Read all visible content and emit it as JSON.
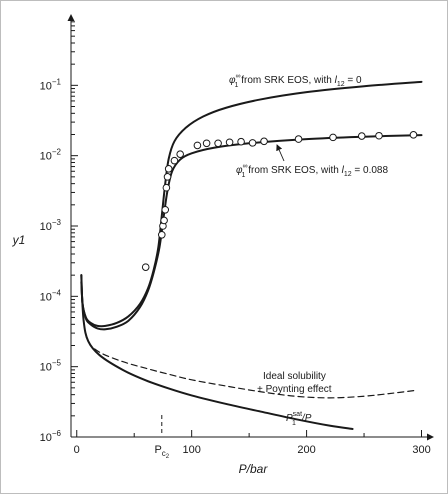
{
  "chart_data": {
    "type": "line",
    "xlabel": "P/bar",
    "ylabel": "y1",
    "x_scale": "linear",
    "y_scale": "log",
    "xlim": [
      -5,
      310
    ],
    "ylim": [
      1e-06,
      1
    ],
    "x_ticks": [
      {
        "value": 0,
        "label": "0"
      },
      {
        "value": 100,
        "label": "100"
      },
      {
        "value": 200,
        "label": "200"
      },
      {
        "value": 300,
        "label": "300"
      }
    ],
    "y_ticks": [
      {
        "value": 1e-06,
        "base": "10",
        "exp": "−6"
      },
      {
        "value": 1e-05,
        "base": "10",
        "exp": "−5"
      },
      {
        "value": 0.0001,
        "base": "10",
        "exp": "−4"
      },
      {
        "value": 0.001,
        "base": "10",
        "exp": "−3"
      },
      {
        "value": 0.01,
        "base": "10",
        "exp": "−2"
      },
      {
        "value": 0.1,
        "base": "10",
        "exp": "−1"
      }
    ],
    "pc2": {
      "value": 74,
      "label": "P",
      "sub": "c",
      "subsub": "2"
    },
    "series": [
      {
        "key": "srk_l12_0",
        "style": "solid",
        "points": [
          [
            4,
            0.0002
          ],
          [
            5,
            8e-05
          ],
          [
            8,
            5e-05
          ],
          [
            12,
            4.2e-05
          ],
          [
            18,
            3.8e-05
          ],
          [
            25,
            3.8e-05
          ],
          [
            35,
            4.2e-05
          ],
          [
            45,
            5.2e-05
          ],
          [
            55,
            7.8e-05
          ],
          [
            62,
            0.00013
          ],
          [
            67,
            0.00024
          ],
          [
            71,
            0.0005
          ],
          [
            74,
            0.0014
          ],
          [
            77,
            0.004
          ],
          [
            80,
            0.009
          ],
          [
            85,
            0.016
          ],
          [
            95,
            0.025
          ],
          [
            110,
            0.036
          ],
          [
            130,
            0.048
          ],
          [
            160,
            0.063
          ],
          [
            200,
            0.08
          ],
          [
            250,
            0.097
          ],
          [
            300,
            0.112
          ]
        ]
      },
      {
        "key": "srk_l12_0088",
        "style": "solid",
        "points": [
          [
            4,
            0.0002
          ],
          [
            5,
            8e-05
          ],
          [
            8,
            4.8e-05
          ],
          [
            12,
            4e-05
          ],
          [
            18,
            3.5e-05
          ],
          [
            25,
            3.4e-05
          ],
          [
            35,
            3.7e-05
          ],
          [
            45,
            4.5e-05
          ],
          [
            55,
            7e-05
          ],
          [
            62,
            0.00012
          ],
          [
            67,
            0.00022
          ],
          [
            72,
            0.0005
          ],
          [
            76,
            0.0015
          ],
          [
            79,
            0.0032
          ],
          [
            83,
            0.006
          ],
          [
            90,
            0.0088
          ],
          [
            100,
            0.0108
          ],
          [
            120,
            0.013
          ],
          [
            150,
            0.015
          ],
          [
            200,
            0.0172
          ],
          [
            250,
            0.0186
          ],
          [
            300,
            0.0196
          ]
        ]
      },
      {
        "key": "ideal_poynting",
        "style": "dashed",
        "points": [
          [
            4,
            0.00016
          ],
          [
            6,
            4.5e-05
          ],
          [
            10,
            2.3e-05
          ],
          [
            20,
            1.6e-05
          ],
          [
            40,
            1.18e-05
          ],
          [
            60,
            9.5e-06
          ],
          [
            80,
            7.8e-06
          ],
          [
            100,
            6.5e-06
          ],
          [
            130,
            5.3e-06
          ],
          [
            160,
            4.4e-06
          ],
          [
            190,
            3.8e-06
          ],
          [
            220,
            3.6e-06
          ],
          [
            250,
            3.8e-06
          ],
          [
            275,
            4.2e-06
          ],
          [
            295,
            4.6e-06
          ]
        ]
      },
      {
        "key": "psat_over_p",
        "style": "solid",
        "points": [
          [
            4,
            0.00016
          ],
          [
            6,
            4.5e-05
          ],
          [
            10,
            2.3e-05
          ],
          [
            20,
            1.45e-05
          ],
          [
            40,
            9e-06
          ],
          [
            60,
            6.4e-06
          ],
          [
            80,
            4.9e-06
          ],
          [
            100,
            3.9e-06
          ],
          [
            130,
            2.95e-06
          ],
          [
            160,
            2.3e-06
          ],
          [
            190,
            1.8e-06
          ],
          [
            220,
            1.45e-06
          ],
          [
            240,
            1.3e-06
          ]
        ]
      }
    ],
    "experimental": {
      "marker": "open-circle",
      "points": [
        [
          60,
          0.00026
        ],
        [
          74,
          0.00075
        ],
        [
          75,
          0.001
        ],
        [
          76,
          0.0012
        ],
        [
          77,
          0.0017
        ],
        [
          78,
          0.0035
        ],
        [
          79,
          0.005
        ],
        [
          80,
          0.0065
        ],
        [
          85,
          0.0085
        ],
        [
          90,
          0.0105
        ],
        [
          105,
          0.014
        ],
        [
          113,
          0.015
        ],
        [
          123,
          0.015
        ],
        [
          133,
          0.0155
        ],
        [
          143,
          0.0158
        ],
        [
          153,
          0.0152
        ],
        [
          163,
          0.016
        ],
        [
          193,
          0.0172
        ],
        [
          223,
          0.0182
        ],
        [
          248,
          0.019
        ],
        [
          263,
          0.0192
        ],
        [
          293,
          0.0198
        ]
      ]
    },
    "annotations": {
      "srk_l12_0": {
        "phi": "φ",
        "phi_sup": "∞",
        "phi_sub": "1",
        "text": " from SRK EOS, with ",
        "l": "l",
        "l_sub": "12",
        "value": " = 0"
      },
      "srk_l12_0088": {
        "phi": "φ",
        "phi_sup": "∞",
        "phi_sub": "1",
        "text": " from SRK EOS, with ",
        "l": "l",
        "l_sub": "12",
        "value": " = 0.088"
      },
      "ideal_line1": "Ideal solubility",
      "ideal_line2": "+ Poynting effect",
      "psat": {
        "p": "P",
        "sup": "sat",
        "sub": "1",
        "rest": "/P"
      }
    }
  }
}
